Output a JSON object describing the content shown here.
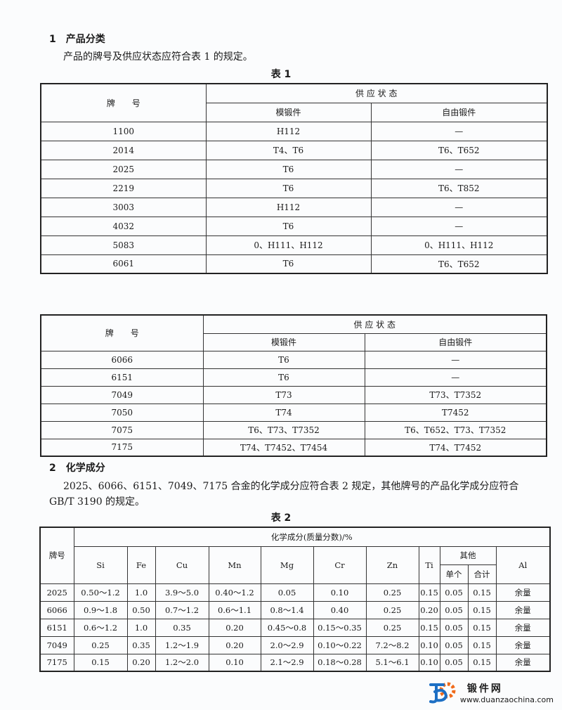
{
  "section1": {
    "heading": "1　产品分类",
    "text": "产品的牌号及供应状态应符合表 1 的规定。",
    "table_caption": "表 1"
  },
  "table1": {
    "headers": {
      "grade": "牌　　号",
      "supply_state": "供 应 状 态",
      "die_forging": "模锻件",
      "free_forging": "自由锻件"
    },
    "rows": [
      [
        "1100",
        "H112",
        "—"
      ],
      [
        "2014",
        "T4、T6",
        "T6、T652"
      ],
      [
        "2025",
        "T6",
        "—"
      ],
      [
        "2219",
        "T6",
        "T6、T852"
      ],
      [
        "3003",
        "H112",
        "—"
      ],
      [
        "4032",
        "T6",
        "—"
      ],
      [
        "5083",
        "0、H111、H112",
        "0、H111、H112"
      ],
      [
        "6061",
        "T6",
        "T6、T652"
      ]
    ]
  },
  "table1_cont": {
    "rows": [
      [
        "6066",
        "T6",
        "—"
      ],
      [
        "6151",
        "T6",
        "—"
      ],
      [
        "7049",
        "T73",
        "T73、T7352"
      ],
      [
        "7050",
        "T74",
        "T7452"
      ],
      [
        "7075",
        "T6、T73、T7352",
        "T6、T652、T73、T7352"
      ],
      [
        "7175",
        "T74、T7452、T7454",
        "T74、T7452"
      ]
    ]
  },
  "section2": {
    "heading": "2　化学成分",
    "text1": "2025、6066、6151、7049、7175 合金的化学成分应符合表 2 规定，其他牌号的产品化学成分应符合",
    "text2": "GB/T 3190 的规定。",
    "table_caption": "表 2"
  },
  "table2": {
    "headers": {
      "grade": "牌号",
      "composition": "化学成分(质量分数)/%",
      "elements": [
        "Si",
        "Fe",
        "Cu",
        "Mn",
        "Mg",
        "Cr",
        "Zn",
        "Ti"
      ],
      "other": "其他",
      "single": "单个",
      "total": "合计",
      "al": "Al"
    },
    "rows": [
      [
        "2025",
        "0.50～1.2",
        "1.0",
        "3.9～5.0",
        "0.40～1.2",
        "0.05",
        "0.10",
        "0.25",
        "0.15",
        "0.05",
        "0.15",
        "余量"
      ],
      [
        "6066",
        "0.9～1.8",
        "0.50",
        "0.7～1.2",
        "0.6～1.1",
        "0.8～1.4",
        "0.40",
        "0.25",
        "0.20",
        "0.05",
        "0.15",
        "余量"
      ],
      [
        "6151",
        "0.6～1.2",
        "1.0",
        "0.35",
        "0.20",
        "0.45～0.8",
        "0.15～0.35",
        "0.25",
        "0.15",
        "0.05",
        "0.15",
        "余量"
      ],
      [
        "7049",
        "0.25",
        "0.35",
        "1.2～1.9",
        "0.20",
        "2.0～2.9",
        "0.10～0.22",
        "7.2～8.2",
        "0.10",
        "0.05",
        "0.15",
        "余量"
      ],
      [
        "7175",
        "0.15",
        "0.20",
        "1.2～2.0",
        "0.10",
        "2.1～2.9",
        "0.18～0.28",
        "5.1～6.1",
        "0.10",
        "0.05",
        "0.15",
        "余量"
      ]
    ]
  },
  "watermark": {
    "name": "锻件网",
    "url": "www.duanzaochina.com",
    "colors": {
      "blue": "#1d6fc4",
      "orange": "#f06a1a"
    }
  }
}
